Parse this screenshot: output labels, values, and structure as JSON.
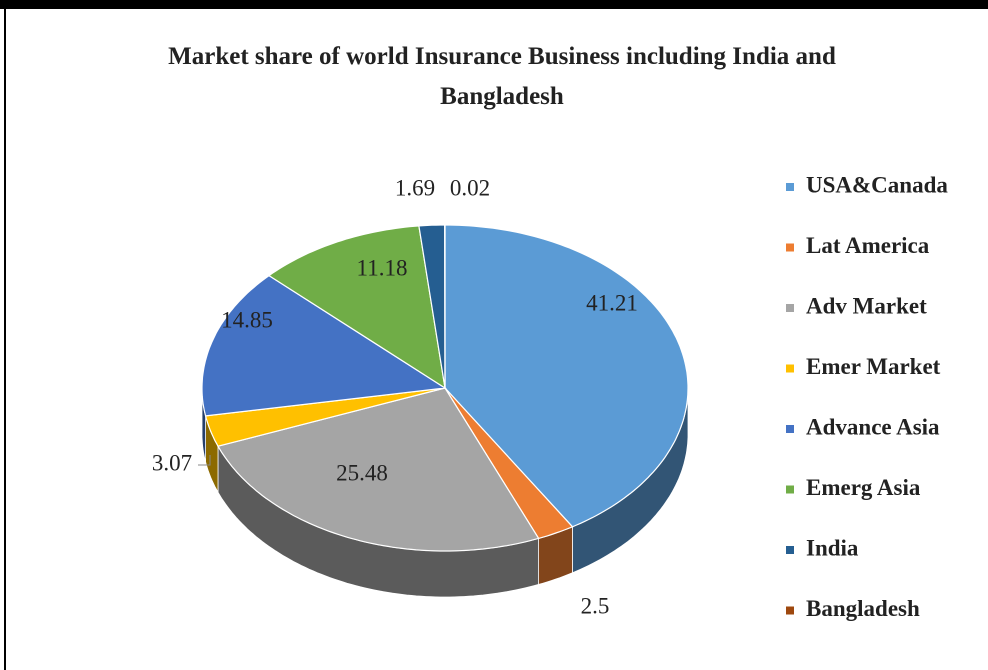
{
  "chart_data": {
    "type": "pie",
    "title": "Market share of world Insurance Business including India and Bangladesh",
    "categories": [
      "USA&Canada",
      "Lat America",
      "Adv Market",
      "Emer Market",
      "Advance Asia",
      "Emerg Asia",
      "India",
      "Bangladesh"
    ],
    "values": [
      41.21,
      2.5,
      25.48,
      3.07,
      14.85,
      11.18,
      1.69,
      0.02
    ],
    "colors": [
      "#5b9bd5",
      "#ed7d31",
      "#a5a5a5",
      "#ffc000",
      "#4472c4",
      "#70ad47",
      "#255e91",
      "#9e480e"
    ],
    "legend": "right"
  }
}
